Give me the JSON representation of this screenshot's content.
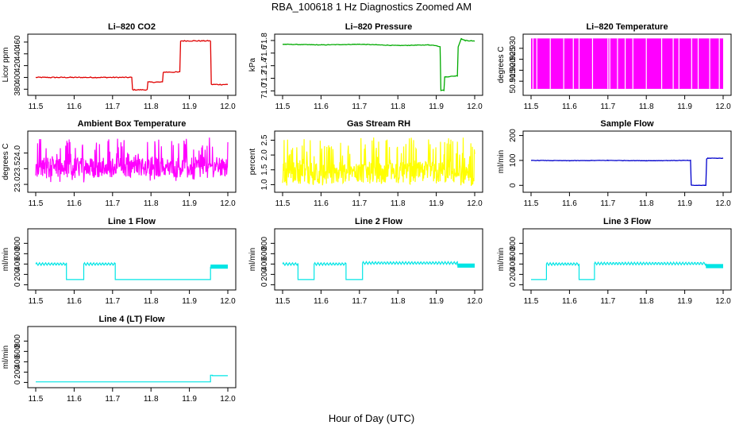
{
  "page": {
    "title": "RBA_100618  1 Hz Diagnostics Zoomed AM",
    "xlabel": "Hour of Day (UTC)"
  },
  "chart_data": [
    {
      "type": "line",
      "title": "Li–820 CO2",
      "ylabel": "Licor ppm",
      "xlim": [
        11.5,
        12.0
      ],
      "ylim": [
        375,
        468
      ],
      "xticks": [
        "11.5",
        "11.6",
        "11.7",
        "11.8",
        "11.9",
        "12.0"
      ],
      "yticks": [
        "380",
        "400",
        "420",
        "440",
        "460"
      ],
      "color": "#e00000",
      "noise": 0.8,
      "x": [
        11.5,
        11.75,
        11.752,
        11.79,
        11.792,
        11.83,
        11.832,
        11.875,
        11.877,
        11.955,
        11.957,
        12.0
      ],
      "y": [
        400,
        400,
        379,
        379,
        392,
        392,
        409,
        409,
        462,
        462,
        388,
        388
      ]
    },
    {
      "type": "line",
      "title": "Li–820 Pressure",
      "ylabel": "kPa",
      "xlim": [
        11.5,
        12.0
      ],
      "ylim": [
        70.98,
        71.85
      ],
      "xticks": [
        "11.5",
        "11.6",
        "11.7",
        "11.8",
        "11.9",
        "12.0"
      ],
      "yticks": [
        "71.0",
        "71.2",
        "71.4",
        "71.6",
        "71.8"
      ],
      "color": "#00aa00",
      "noise": 0.004,
      "x": [
        11.5,
        11.6,
        11.7,
        11.8,
        11.88,
        11.9,
        11.91,
        11.912,
        11.92,
        11.922,
        11.955,
        11.957,
        11.965,
        11.975,
        12.0
      ],
      "y": [
        71.74,
        71.73,
        71.74,
        71.72,
        71.73,
        71.72,
        71.7,
        71.01,
        71.01,
        71.22,
        71.24,
        71.7,
        71.83,
        71.8,
        71.79
      ]
    },
    {
      "type": "area",
      "title": "Li–820 Temperature",
      "ylabel": "degrees C",
      "xlim": [
        11.5,
        12.0
      ],
      "ylim": [
        50.91,
        50.935
      ],
      "xticks": [
        "11.5",
        "11.6",
        "11.7",
        "11.8",
        "11.9",
        "12.0"
      ],
      "yticks": [
        "50.915",
        "50.920",
        "50.925",
        "50.930"
      ],
      "color": "#ff00ff",
      "fill_bottom": 50.9115,
      "fill_top": 50.9345,
      "gaps_x": [
        11.505,
        11.515,
        11.55,
        11.585,
        11.61,
        11.625,
        11.66,
        11.7,
        11.705,
        11.725,
        11.745,
        11.765,
        11.8,
        11.84,
        11.87,
        11.885,
        11.918,
        11.935,
        11.965,
        11.99
      ]
    },
    {
      "type": "line",
      "title": "Ambient Box Temperature",
      "ylabel": "degrees C",
      "xlim": [
        11.5,
        12.0
      ],
      "ylim": [
        22.85,
        24.6
      ],
      "xticks": [
        "11.5",
        "11.6",
        "11.7",
        "11.8",
        "11.9",
        "12.0"
      ],
      "yticks": [
        "23.0",
        "23.5",
        "24.0"
      ],
      "color": "#ff00ff",
      "noise_band": [
        23.05,
        24.5
      ],
      "center": 23.55,
      "x": [
        11.5,
        12.0
      ],
      "y": [
        23.55,
        23.55
      ]
    },
    {
      "type": "line",
      "title": "Gas Stream RH",
      "ylabel": "percent",
      "xlim": [
        11.5,
        12.0
      ],
      "ylim": [
        0.85,
        2.7
      ],
      "xticks": [
        "11.5",
        "11.6",
        "11.7",
        "11.8",
        "11.9",
        "12.0"
      ],
      "yticks": [
        "1.0",
        "1.5",
        "2.0",
        "2.5"
      ],
      "color": "#ffff00",
      "noise_band": [
        0.95,
        2.6
      ],
      "center": 1.4,
      "x": [
        11.5,
        12.0
      ],
      "y": [
        1.4,
        1.4
      ]
    },
    {
      "type": "line",
      "title": "Sample Flow",
      "ylabel": "ml/min",
      "xlim": [
        11.5,
        12.0
      ],
      "ylim": [
        -15,
        205
      ],
      "xticks": [
        "11.5",
        "11.6",
        "11.7",
        "11.8",
        "11.9",
        "12.0"
      ],
      "yticks": [
        "0",
        "100",
        "200"
      ],
      "color": "#0000cc",
      "noise": 0.8,
      "x": [
        11.5,
        11.6,
        11.7,
        11.8,
        11.915,
        11.917,
        11.955,
        11.957,
        11.96,
        12.0
      ],
      "y": [
        100,
        99,
        100,
        99,
        100,
        0,
        0,
        106,
        109,
        109
      ]
    },
    {
      "type": "line",
      "title": "Line 1 Flow",
      "ylabel": "ml/min",
      "xlim": [
        11.5,
        12.0
      ],
      "ylim": [
        -40,
        1020
      ],
      "xticks": [
        "11.5",
        "11.6",
        "11.7",
        "11.8",
        "11.9",
        "12.0"
      ],
      "yticks": [
        "0",
        "200",
        "400",
        "600",
        "800"
      ],
      "color": "#00e5e5",
      "wiggle": 25,
      "segments": [
        {
          "x0": 11.5,
          "x1": 11.58,
          "y": 400,
          "wiggle": true
        },
        {
          "x0": 11.58,
          "x1": 11.625,
          "y": 100
        },
        {
          "x0": 11.625,
          "x1": 11.707,
          "y": 400,
          "wiggle": true
        },
        {
          "x0": 11.707,
          "x1": 11.955,
          "y": 100
        },
        {
          "x0": 11.955,
          "x1": 12.0,
          "y": 350,
          "thick": true
        }
      ]
    },
    {
      "type": "line",
      "title": "Line 2 Flow",
      "ylabel": "ml/min",
      "xlim": [
        11.5,
        12.0
      ],
      "ylim": [
        -40,
        1020
      ],
      "xticks": [
        "11.5",
        "11.6",
        "11.7",
        "11.8",
        "11.9",
        "12.0"
      ],
      "yticks": [
        "0",
        "200",
        "400",
        "600",
        "800"
      ],
      "color": "#00e5e5",
      "wiggle": 25,
      "segments": [
        {
          "x0": 11.5,
          "x1": 11.54,
          "y": 400,
          "wiggle": true
        },
        {
          "x0": 11.54,
          "x1": 11.582,
          "y": 100
        },
        {
          "x0": 11.582,
          "x1": 11.665,
          "y": 400,
          "wiggle": true
        },
        {
          "x0": 11.665,
          "x1": 11.708,
          "y": 100
        },
        {
          "x0": 11.708,
          "x1": 11.955,
          "y": 420,
          "wiggle": true
        },
        {
          "x0": 11.955,
          "x1": 12.0,
          "y": 370,
          "thick": true
        }
      ]
    },
    {
      "type": "line",
      "title": "Line 3 Flow",
      "ylabel": "ml/min",
      "xlim": [
        11.5,
        12.0
      ],
      "ylim": [
        -40,
        1020
      ],
      "xticks": [
        "11.5",
        "11.6",
        "11.7",
        "11.8",
        "11.9",
        "12.0"
      ],
      "yticks": [
        "0",
        "200",
        "400",
        "600",
        "800"
      ],
      "color": "#00e5e5",
      "wiggle": 25,
      "segments": [
        {
          "x0": 11.5,
          "x1": 11.54,
          "y": 100
        },
        {
          "x0": 11.54,
          "x1": 11.625,
          "y": 400,
          "wiggle": true
        },
        {
          "x0": 11.625,
          "x1": 11.665,
          "y": 100
        },
        {
          "x0": 11.665,
          "x1": 11.955,
          "y": 410,
          "wiggle": true
        },
        {
          "x0": 11.955,
          "x1": 12.0,
          "y": 360,
          "thick": true
        }
      ]
    },
    {
      "type": "line",
      "title": "Line 4 (LT) Flow",
      "ylabel": "ml/min",
      "xlim": [
        11.5,
        12.0
      ],
      "ylim": [
        -40,
        1020
      ],
      "xticks": [
        "11.5",
        "11.6",
        "11.7",
        "11.8",
        "11.9",
        "12.0"
      ],
      "yticks": [
        "0",
        "200",
        "400",
        "600",
        "800"
      ],
      "color": "#00e5e5",
      "wiggle": 0,
      "segments": [
        {
          "x0": 11.5,
          "x1": 11.955,
          "y": 10
        },
        {
          "x0": 11.955,
          "x1": 11.96,
          "y": 140
        },
        {
          "x0": 11.96,
          "x1": 12.0,
          "y": 130
        }
      ]
    }
  ]
}
